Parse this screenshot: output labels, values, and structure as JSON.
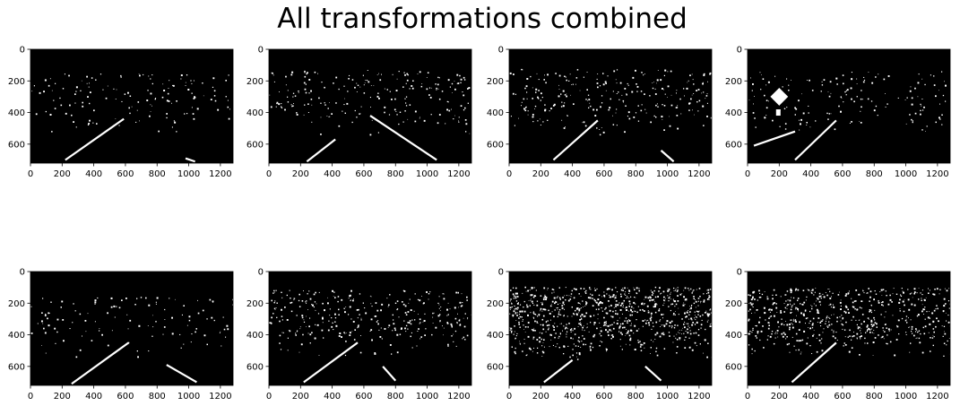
{
  "figure": {
    "title": "All transformations combined",
    "background": "#ffffff"
  },
  "chart_data": {
    "type": "image-grid",
    "rows": 2,
    "cols": 4,
    "image_colormap": "binary (black/white)",
    "x_ticks": [
      0,
      200,
      400,
      600,
      800,
      1000,
      1200
    ],
    "y_ticks": [
      0,
      200,
      400,
      600
    ],
    "xlim": [
      0,
      1280
    ],
    "ylim": [
      720,
      0
    ],
    "panels": [
      {
        "index": 1,
        "content": "binary lane mask"
      },
      {
        "index": 2,
        "content": "binary lane mask"
      },
      {
        "index": 3,
        "content": "binary lane mask"
      },
      {
        "index": 4,
        "content": "binary lane mask"
      },
      {
        "index": 5,
        "content": "binary lane mask"
      },
      {
        "index": 6,
        "content": "binary lane mask"
      },
      {
        "index": 7,
        "content": "binary lane mask"
      },
      {
        "index": 8,
        "content": "binary lane mask"
      }
    ]
  }
}
